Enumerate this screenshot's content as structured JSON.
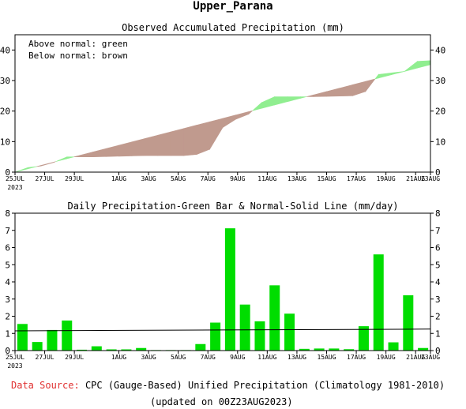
{
  "page_title": "Upper_Parana",
  "footer": {
    "source_label": "Data Source:",
    "source_text": "CPC (Gauge-Based) Unified Precipitation (Climatology 1981-2010)",
    "updated": "(updated on 00Z23AUG2023)"
  },
  "colors": {
    "above_normal": "#90ee90",
    "below_normal": "#c09a8e",
    "bar": "#00dd00",
    "footer_label": "#e03030"
  },
  "chart_data": [
    {
      "type": "area",
      "title": "Observed Accumulated Precipitation (mm)",
      "legend": [
        "Above normal: green",
        "Below normal: brown"
      ],
      "legend_placement": "top-left",
      "x_ticks": [
        "25JUL",
        "27JUL",
        "29JUL",
        "1AUG",
        "3AUG",
        "5AUG",
        "7AUG",
        "9AUG",
        "11AUG",
        "13AUG",
        "15AUG",
        "17AUG",
        "19AUG",
        "21AUG",
        "23AUG"
      ],
      "x_year_label": "2023",
      "ylim": [
        0,
        45
      ],
      "yticks": [
        0,
        10,
        20,
        30,
        40
      ],
      "series": [
        {
          "name": "Observed",
          "values": [
            0,
            1.5,
            2,
            3.2,
            5,
            5,
            5,
            5.1,
            5.2,
            5.3,
            5.4,
            5.4,
            5.4,
            5.4,
            5.8,
            7.5,
            14.6,
            17.3,
            19,
            22.8,
            24.7,
            24.7,
            24.7,
            24.7,
            24.8,
            24.9,
            25,
            26.4,
            32,
            32.5,
            33,
            36.3,
            36.5
          ]
        },
        {
          "name": "Normal",
          "values": [
            0,
            1.1,
            2.2,
            3.3,
            4.4,
            5.5,
            6.6,
            7.7,
            8.8,
            9.9,
            11,
            12.1,
            13.2,
            14.3,
            15.4,
            16.5,
            17.6,
            18.7,
            19.8,
            20.9,
            22,
            23.1,
            24.2,
            25.3,
            26.4,
            27.5,
            28.6,
            29.7,
            30.8,
            31.9,
            33,
            34.1,
            35.2
          ]
        }
      ]
    },
    {
      "type": "bar",
      "title": "Daily Precipitation-Green Bar & Normal-Solid Line (mm/day)",
      "x_ticks": [
        "25JUL",
        "27JUL",
        "29JUL",
        "1AUG",
        "3AUG",
        "5AUG",
        "7AUG",
        "9AUG",
        "11AUG",
        "13AUG",
        "15AUG",
        "17AUG",
        "19AUG",
        "21AUG",
        "23AUG"
      ],
      "x_year_label": "2023",
      "ylim": [
        0,
        8
      ],
      "yticks": [
        0,
        1,
        2,
        3,
        4,
        5,
        6,
        7,
        8
      ],
      "bars": [
        1.55,
        0.5,
        1.2,
        1.75,
        0.05,
        0.25,
        0.07,
        0.07,
        0.15,
        0.03,
        0.03,
        0.03,
        0.38,
        1.63,
        7.12,
        2.68,
        1.7,
        3.8,
        2.15,
        0.1,
        0.12,
        0.12,
        0.08,
        1.42,
        5.6,
        0.48,
        3.22,
        0.15
      ],
      "normal": [
        1.15,
        1.2,
        1.25
      ]
    }
  ]
}
